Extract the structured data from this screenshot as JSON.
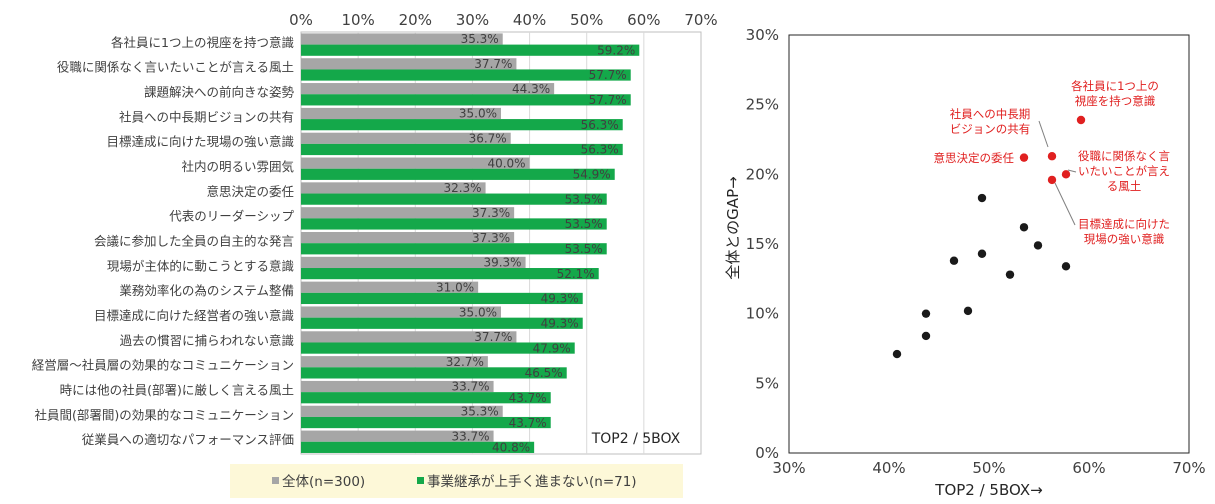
{
  "colors": {
    "all": "#a6a6a6",
    "struggling": "#14a84a",
    "highlight": "#e02020",
    "scatter_point": "#1a1a1a",
    "legend_bg": "#fdf8d8"
  },
  "chart_data": [
    {
      "type": "bar",
      "orientation": "horizontal",
      "x_ticks": [
        "0%",
        "10%",
        "20%",
        "30%",
        "40%",
        "50%",
        "60%",
        "70%"
      ],
      "xlim": [
        0,
        70
      ],
      "annotation": "TOP2 / 5BOX",
      "categories": [
        "各社員に1つ上の視座を持つ意識",
        "役職に関係なく言いたいことが言える風土",
        "課題解決への前向きな姿勢",
        "社員への中長期ビジョンの共有",
        "目標達成に向けた現場の強い意識",
        "社内の明るい雰囲気",
        "意思決定の委任",
        "代表のリーダーシップ",
        "会議に参加した全員の自主的な発言",
        "現場が主体的に動こうとする意識",
        "業務効率化の為のシステム整備",
        "目標達成に向けた経営者の強い意識",
        "過去の慣習に捕らわれない意識",
        "経営層～社員層の効果的なコミュニケーション",
        "時には他の社員(部署)に厳しく言える風土",
        "社員間(部署間)の効果的なコミュニケーション",
        "従業員への適切なパフォーマンス評価"
      ],
      "series": [
        {
          "name": "全体(n=300)",
          "values": [
            35.3,
            37.7,
            44.3,
            35.0,
            36.7,
            40.0,
            32.3,
            37.3,
            37.3,
            39.3,
            31.0,
            35.0,
            37.7,
            32.7,
            33.7,
            35.3,
            33.7
          ],
          "labels": [
            "35.3%",
            "37.7%",
            "44.3%",
            "35.0%",
            "36.7%",
            "40.0%",
            "32.3%",
            "37.3%",
            "37.3%",
            "39.3%",
            "31.0%",
            "35.0%",
            "37.7%",
            "32.7%",
            "33.7%",
            "35.3%",
            "33.7%"
          ]
        },
        {
          "name": "事業継承が上手く進まない(n=71)",
          "values": [
            59.2,
            57.7,
            57.7,
            56.3,
            56.3,
            54.9,
            53.5,
            53.5,
            53.5,
            52.1,
            49.3,
            49.3,
            47.9,
            46.5,
            43.7,
            43.7,
            40.8
          ],
          "labels": [
            "59.2%",
            "57.7%",
            "57.7%",
            "56.3%",
            "56.3%",
            "54.9%",
            "53.5%",
            "53.5%",
            "53.5%",
            "52.1%",
            "49.3%",
            "49.3%",
            "47.9%",
            "46.5%",
            "43.7%",
            "43.7%",
            "40.8%"
          ]
        }
      ],
      "legend": [
        "全体(n=300)",
        "事業継承が上手く進まない(n=71)"
      ],
      "legend_position": "bottom"
    },
    {
      "type": "scatter",
      "xlabel": "TOP2 / 5BOX→",
      "ylabel": "全体とのGAP→",
      "x_ticks": [
        "30%",
        "40%",
        "50%",
        "60%",
        "70%"
      ],
      "y_ticks": [
        "0%",
        "5%",
        "10%",
        "15%",
        "20%",
        "25%",
        "30%"
      ],
      "xlim": [
        30,
        70
      ],
      "ylim": [
        0,
        30
      ],
      "highlighted_points": [
        {
          "x": 59.2,
          "y": 23.9,
          "label_lines": [
            "各社員に1つ上の",
            "視座を持つ意識"
          ]
        },
        {
          "x": 56.3,
          "y": 21.3,
          "label_lines": [
            "社員への中長期",
            "ビジョンの共有"
          ]
        },
        {
          "x": 53.5,
          "y": 21.2,
          "label_lines": [
            "意思決定の委任"
          ]
        },
        {
          "x": 57.7,
          "y": 20.0,
          "label_lines": [
            "役職に関係なく言",
            "いたいことが言え",
            "る風土"
          ]
        },
        {
          "x": 56.3,
          "y": 19.6,
          "label_lines": [
            "目標達成に向けた",
            "現場の強い意識"
          ]
        }
      ],
      "points": [
        {
          "x": 49.3,
          "y": 18.3
        },
        {
          "x": 53.5,
          "y": 16.2
        },
        {
          "x": 54.9,
          "y": 14.9
        },
        {
          "x": 49.3,
          "y": 14.3
        },
        {
          "x": 46.5,
          "y": 13.8
        },
        {
          "x": 57.7,
          "y": 13.4
        },
        {
          "x": 52.1,
          "y": 12.8
        },
        {
          "x": 47.9,
          "y": 10.2
        },
        {
          "x": 43.7,
          "y": 10.0
        },
        {
          "x": 43.7,
          "y": 8.4
        },
        {
          "x": 40.8,
          "y": 7.1
        }
      ]
    }
  ]
}
